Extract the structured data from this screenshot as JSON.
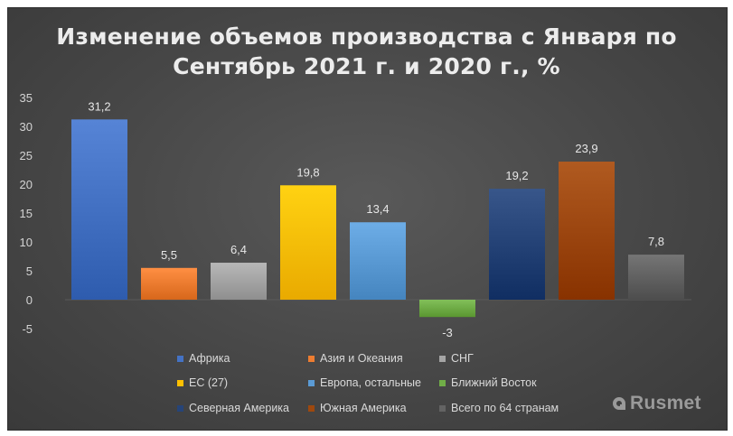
{
  "chart_data": {
    "type": "bar",
    "title_line1": "Изменение объемов производства с Января по",
    "title_line2": "Сентябрь 2021 г. и 2020 г., %",
    "ylim": [
      -5,
      35
    ],
    "yticks": [
      35,
      30,
      25,
      20,
      15,
      10,
      5,
      0,
      -5
    ],
    "grid": false,
    "legend_position": "bottom",
    "series": [
      {
        "name": "Африка",
        "value": 31.2,
        "label": "31,2",
        "color": "#4472c4"
      },
      {
        "name": "Азия и Океания",
        "value": 5.5,
        "label": "5,5",
        "color": "#ed7d31"
      },
      {
        "name": "СНГ",
        "value": 6.4,
        "label": "6,4",
        "color": "#a5a5a5"
      },
      {
        "name": "ЕС (27)",
        "value": 19.8,
        "label": "19,8",
        "color": "#ffc000"
      },
      {
        "name": "Европа, остальные",
        "value": 13.4,
        "label": "13,4",
        "color": "#5b9bd5"
      },
      {
        "name": "Ближний Восток",
        "value": -3,
        "label": "-3",
        "color": "#70ad47"
      },
      {
        "name": "Северная Америка",
        "value": 19.2,
        "label": "19,2",
        "color": "#264478"
      },
      {
        "name": "Южная Америка",
        "value": 23.9,
        "label": "23,9",
        "color": "#9e480e"
      },
      {
        "name": "Всего по 64 странам",
        "value": 7.8,
        "label": "7,8",
        "color": "#636363"
      }
    ]
  },
  "watermark": {
    "text": "Rusmet",
    "icon": "rusmet-logo-icon"
  }
}
